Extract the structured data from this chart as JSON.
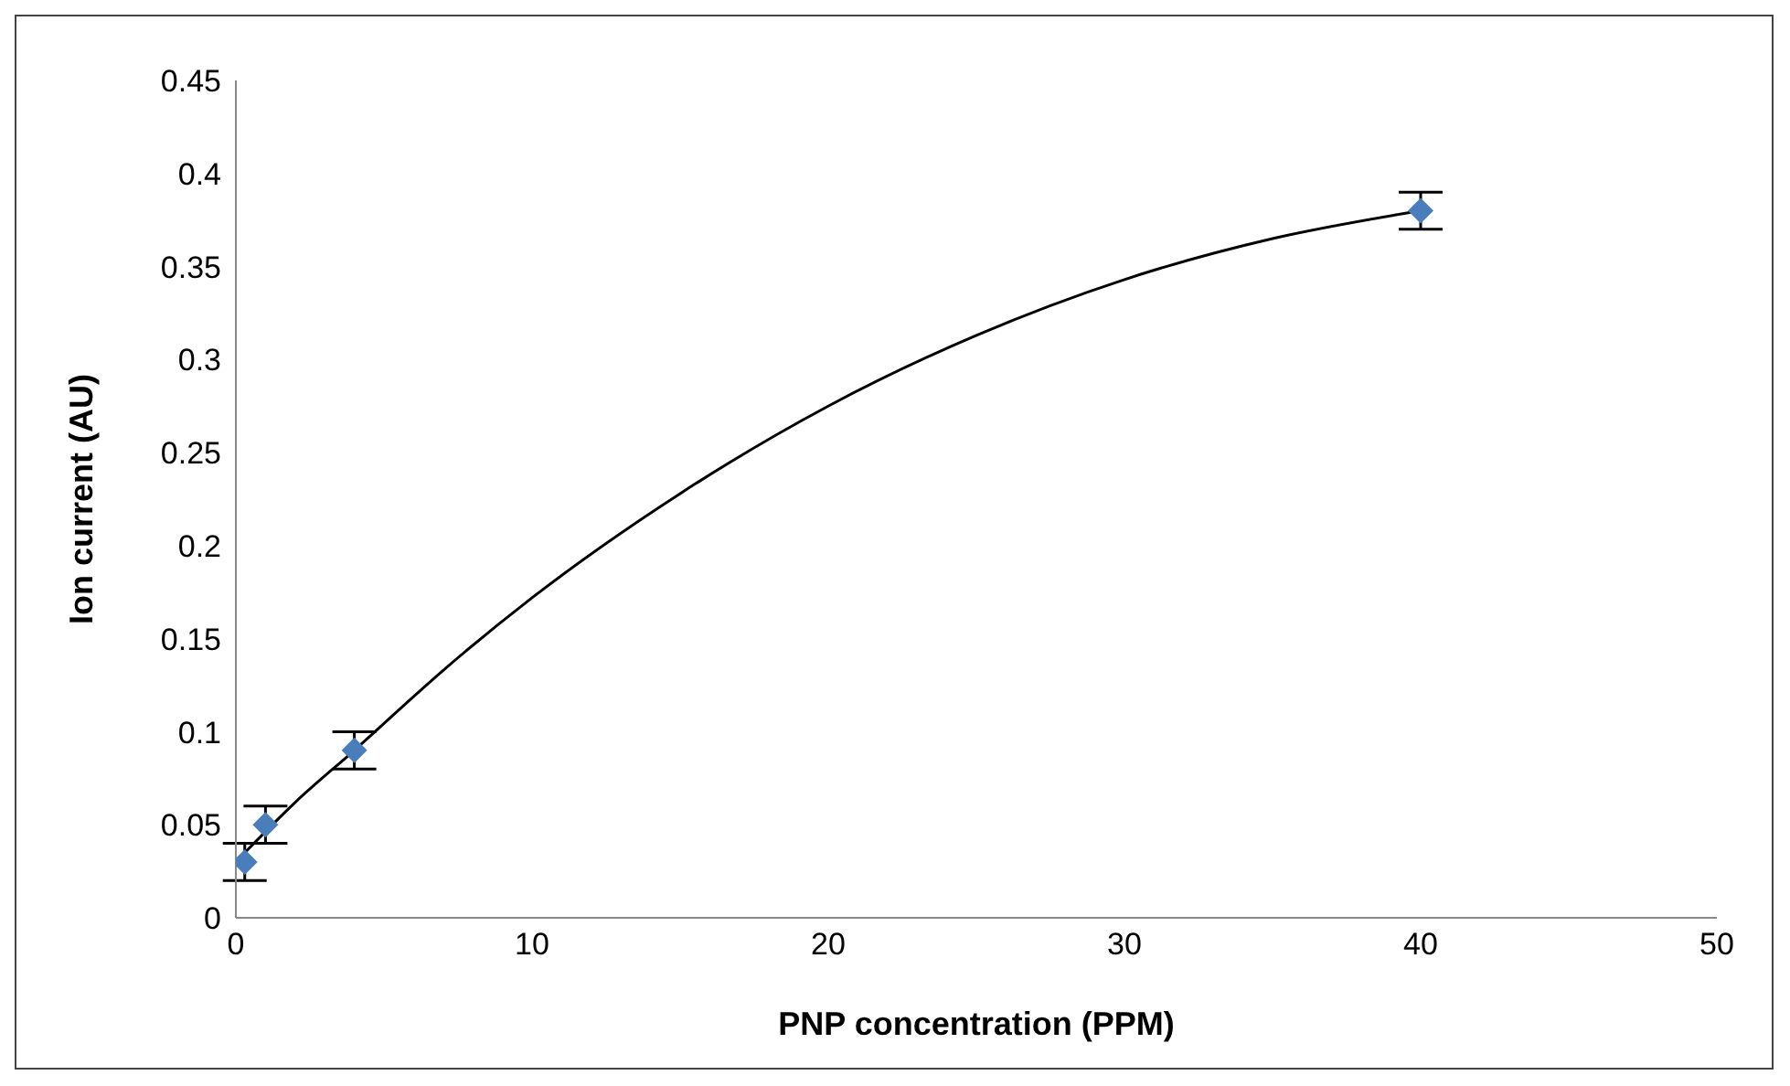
{
  "chart_data": {
    "type": "scatter",
    "xlabel": "PNP concentration (PPM)",
    "ylabel": "Ion current (AU)",
    "xlim": [
      0,
      50
    ],
    "xticks": [
      0,
      10,
      20,
      30,
      40,
      50
    ],
    "ylim": [
      0,
      0.45
    ],
    "yticks": [
      0,
      0.05,
      0.1,
      0.15,
      0.2,
      0.25,
      0.3,
      0.35,
      0.4,
      0.45
    ],
    "grid": false,
    "marker": "diamond",
    "series": [
      {
        "color": "#4a7ebb",
        "x": [
          0.3,
          1,
          4,
          40
        ],
        "values": [
          0.03,
          0.05,
          0.09,
          0.38
        ],
        "errors": [
          0.01,
          0.01,
          0.01,
          0.01
        ]
      },
      {
        "type": "line",
        "color": "#000000",
        "line_style": "solid",
        "marker": "none",
        "x": [
          0.3,
          2,
          4,
          7,
          10,
          15,
          20,
          25,
          30,
          35,
          40
        ],
        "values": [
          0.035,
          0.062,
          0.09,
          0.133,
          0.172,
          0.228,
          0.275,
          0.313,
          0.343,
          0.365,
          0.38
        ]
      }
    ]
  }
}
